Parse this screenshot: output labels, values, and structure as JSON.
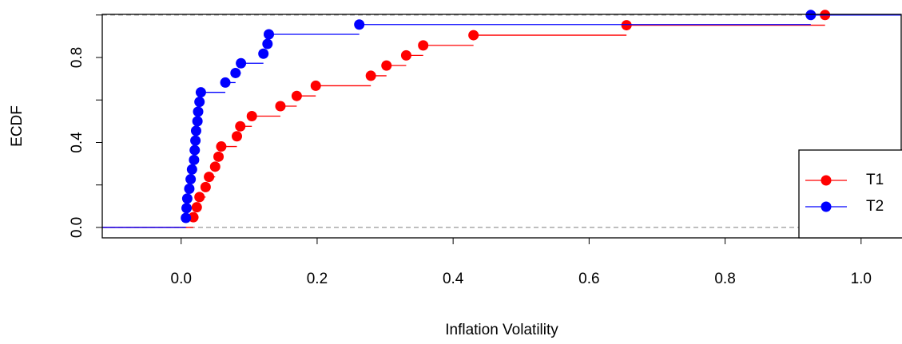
{
  "chart_data": {
    "type": "ecdf",
    "xlabel": "Inflation Volatility",
    "ylabel": "ECDF",
    "xlim": [
      -0.116,
      1.059
    ],
    "ylim": [
      -0.049,
      1.003
    ],
    "xticks": [
      {
        "value": 0,
        "label": "0.0"
      },
      0.2,
      0.4,
      0.6,
      0.8,
      {
        "value": 1,
        "label": "1.0"
      }
    ],
    "yticks": [
      {
        "value": 0,
        "label": "0.0"
      },
      0.4,
      0.8
    ],
    "yticks_unlabeled": [
      0.2,
      0.6,
      1
    ],
    "reference_lines": [
      0,
      1
    ],
    "legend": "bottom-right",
    "series": [
      {
        "name": "T1",
        "color": "#ff0000",
        "x": [
          0.018,
          0.023,
          0.027,
          0.036,
          0.041,
          0.05,
          0.055,
          0.059,
          0.082,
          0.087,
          0.104,
          0.146,
          0.17,
          0.198,
          0.279,
          0.302,
          0.331,
          0.356,
          0.43,
          0.655,
          0.947
        ],
        "values": [
          0.048,
          0.095,
          0.143,
          0.19,
          0.238,
          0.286,
          0.333,
          0.381,
          0.429,
          0.476,
          0.524,
          0.571,
          0.619,
          0.667,
          0.714,
          0.762,
          0.81,
          0.857,
          0.905,
          0.952,
          1
        ]
      },
      {
        "name": "T2",
        "color": "#0000ff",
        "x": [
          0.007,
          0.008,
          0.009,
          0.012,
          0.014,
          0.016,
          0.019,
          0.02,
          0.021,
          0.022,
          0.024,
          0.025,
          0.027,
          0.029,
          0.065,
          0.08,
          0.088,
          0.121,
          0.127,
          0.129,
          0.262,
          0.926
        ],
        "values": [
          0.045,
          0.091,
          0.136,
          0.182,
          0.227,
          0.273,
          0.318,
          0.364,
          0.409,
          0.455,
          0.5,
          0.545,
          0.591,
          0.636,
          0.682,
          0.727,
          0.773,
          0.818,
          0.864,
          0.909,
          0.955,
          1
        ]
      }
    ]
  }
}
